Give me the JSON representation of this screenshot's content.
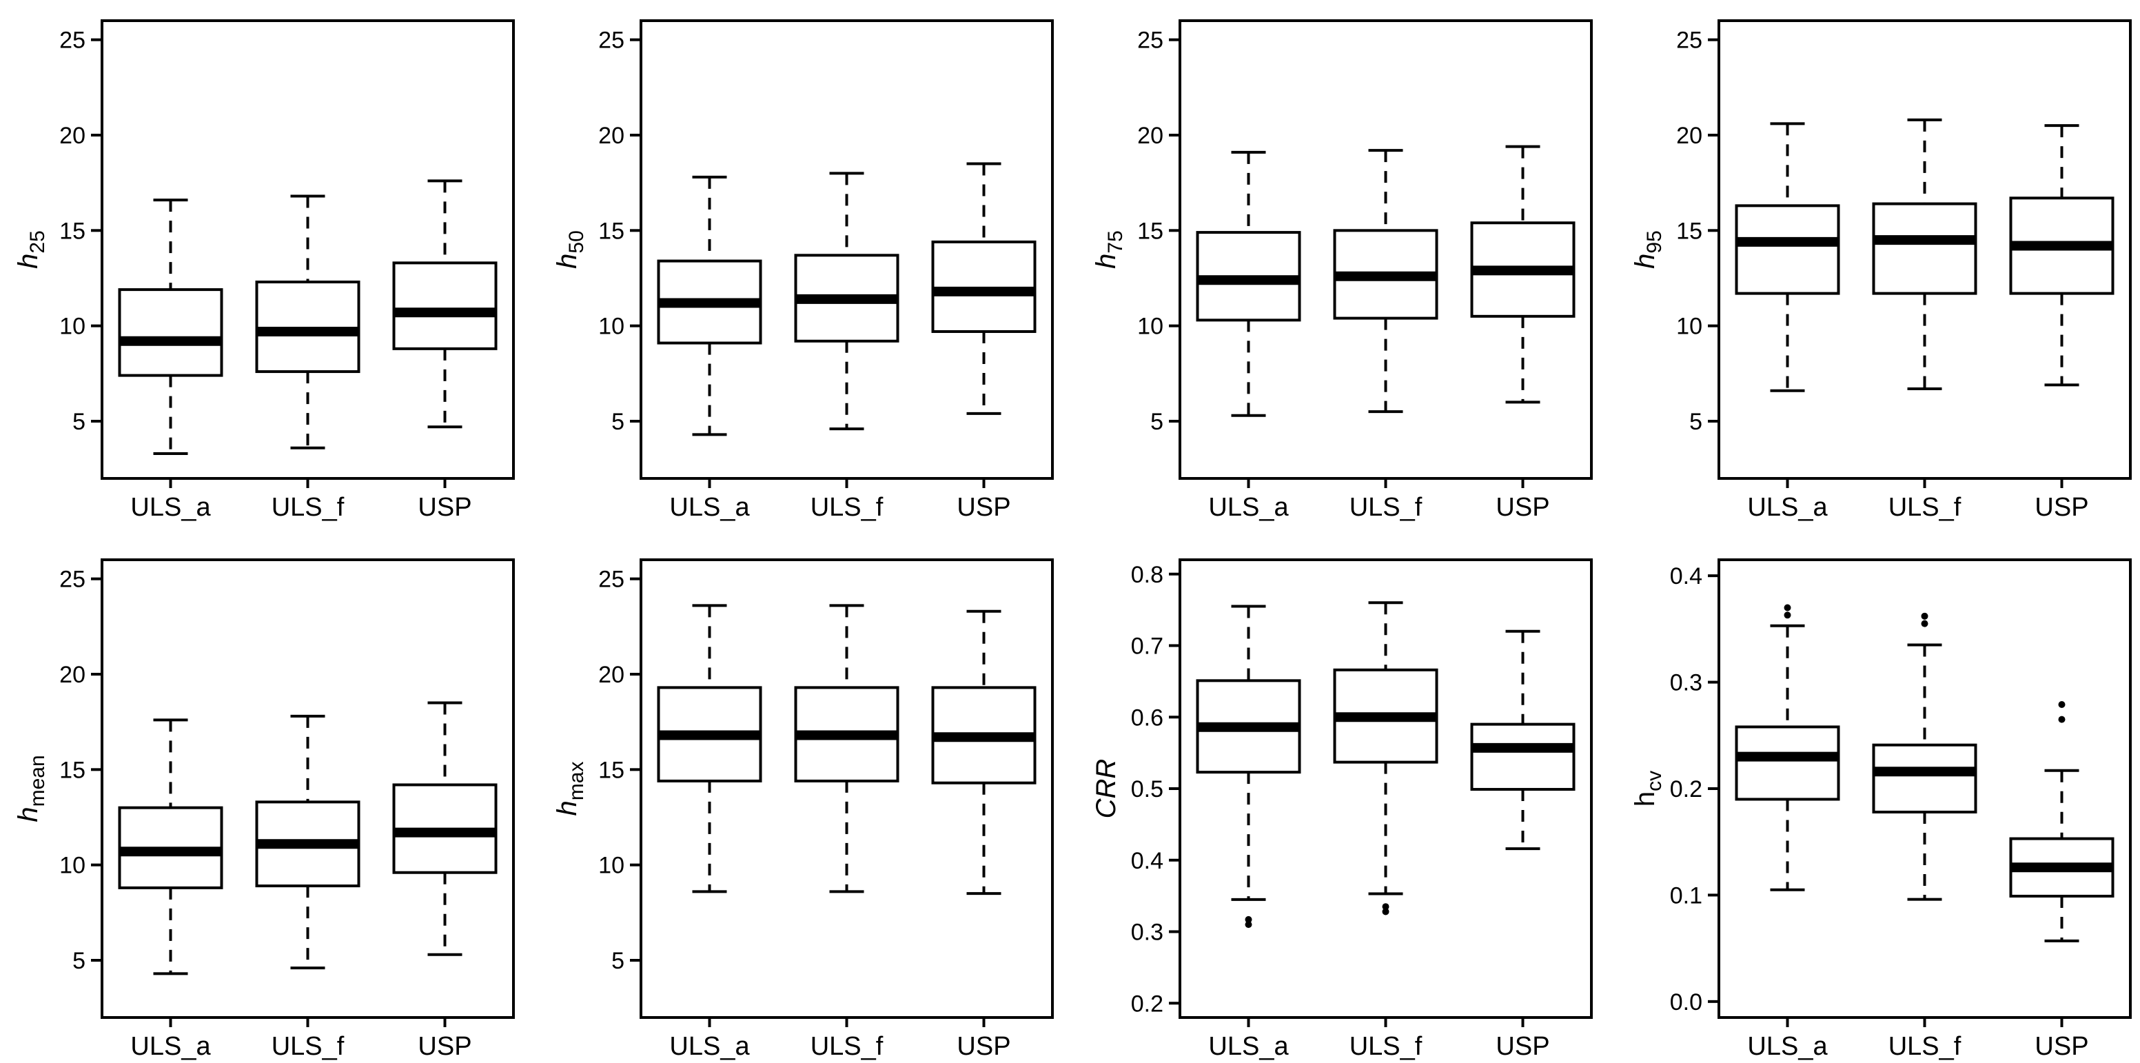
{
  "chart_data": [
    {
      "type": "box",
      "ylabel": {
        "base": "h",
        "sub": "25",
        "italic_base": true
      },
      "categories": [
        "ULS_a",
        "ULS_f",
        "USP"
      ],
      "ylim": [
        2,
        26
      ],
      "yticks": [
        5,
        10,
        15,
        20,
        25
      ],
      "yticklabels": [
        "5",
        "10",
        "15",
        "20",
        "25"
      ],
      "boxes": [
        {
          "category": "ULS_a",
          "whisker_low": 3.3,
          "q1": 7.4,
          "median": 9.2,
          "q3": 11.9,
          "whisker_high": 16.6,
          "outliers": []
        },
        {
          "category": "ULS_f",
          "whisker_low": 3.6,
          "q1": 7.6,
          "median": 9.7,
          "q3": 12.3,
          "whisker_high": 16.8,
          "outliers": []
        },
        {
          "category": "USP",
          "whisker_low": 4.7,
          "q1": 8.8,
          "median": 10.7,
          "q3": 13.3,
          "whisker_high": 17.6,
          "outliers": []
        }
      ]
    },
    {
      "type": "box",
      "ylabel": {
        "base": "h",
        "sub": "50",
        "italic_base": true
      },
      "categories": [
        "ULS_a",
        "ULS_f",
        "USP"
      ],
      "ylim": [
        2,
        26
      ],
      "yticks": [
        5,
        10,
        15,
        20,
        25
      ],
      "yticklabels": [
        "5",
        "10",
        "15",
        "20",
        "25"
      ],
      "boxes": [
        {
          "category": "ULS_a",
          "whisker_low": 4.3,
          "q1": 9.1,
          "median": 11.2,
          "q3": 13.4,
          "whisker_high": 17.8,
          "outliers": []
        },
        {
          "category": "ULS_f",
          "whisker_low": 4.6,
          "q1": 9.2,
          "median": 11.4,
          "q3": 13.7,
          "whisker_high": 18.0,
          "outliers": []
        },
        {
          "category": "USP",
          "whisker_low": 5.4,
          "q1": 9.7,
          "median": 11.8,
          "q3": 14.4,
          "whisker_high": 18.5,
          "outliers": []
        }
      ]
    },
    {
      "type": "box",
      "ylabel": {
        "base": "h",
        "sub": "75",
        "italic_base": true
      },
      "categories": [
        "ULS_a",
        "ULS_f",
        "USP"
      ],
      "ylim": [
        2,
        26
      ],
      "yticks": [
        5,
        10,
        15,
        20,
        25
      ],
      "yticklabels": [
        "5",
        "10",
        "15",
        "20",
        "25"
      ],
      "boxes": [
        {
          "category": "ULS_a",
          "whisker_low": 5.3,
          "q1": 10.3,
          "median": 12.4,
          "q3": 14.9,
          "whisker_high": 19.1,
          "outliers": []
        },
        {
          "category": "ULS_f",
          "whisker_low": 5.5,
          "q1": 10.4,
          "median": 12.6,
          "q3": 15.0,
          "whisker_high": 19.2,
          "outliers": []
        },
        {
          "category": "USP",
          "whisker_low": 6.0,
          "q1": 10.5,
          "median": 12.9,
          "q3": 15.4,
          "whisker_high": 19.4,
          "outliers": []
        }
      ]
    },
    {
      "type": "box",
      "ylabel": {
        "base": "h",
        "sub": "95",
        "italic_base": true
      },
      "categories": [
        "ULS_a",
        "ULS_f",
        "USP"
      ],
      "ylim": [
        2,
        26
      ],
      "yticks": [
        5,
        10,
        15,
        20,
        25
      ],
      "yticklabels": [
        "5",
        "10",
        "15",
        "20",
        "25"
      ],
      "boxes": [
        {
          "category": "ULS_a",
          "whisker_low": 6.6,
          "q1": 11.7,
          "median": 14.4,
          "q3": 16.3,
          "whisker_high": 20.6,
          "outliers": []
        },
        {
          "category": "ULS_f",
          "whisker_low": 6.7,
          "q1": 11.7,
          "median": 14.5,
          "q3": 16.4,
          "whisker_high": 20.8,
          "outliers": []
        },
        {
          "category": "USP",
          "whisker_low": 6.9,
          "q1": 11.7,
          "median": 14.2,
          "q3": 16.7,
          "whisker_high": 20.5,
          "outliers": []
        }
      ]
    },
    {
      "type": "box",
      "ylabel": {
        "base": "h",
        "sub": "mean",
        "italic_base": true
      },
      "categories": [
        "ULS_a",
        "ULS_f",
        "USP"
      ],
      "ylim": [
        2,
        26
      ],
      "yticks": [
        5,
        10,
        15,
        20,
        25
      ],
      "yticklabels": [
        "5",
        "10",
        "15",
        "20",
        "25"
      ],
      "boxes": [
        {
          "category": "ULS_a",
          "whisker_low": 4.3,
          "q1": 8.8,
          "median": 10.7,
          "q3": 13.0,
          "whisker_high": 17.6,
          "outliers": []
        },
        {
          "category": "ULS_f",
          "whisker_low": 4.6,
          "q1": 8.9,
          "median": 11.1,
          "q3": 13.3,
          "whisker_high": 17.8,
          "outliers": []
        },
        {
          "category": "USP",
          "whisker_low": 5.3,
          "q1": 9.6,
          "median": 11.7,
          "q3": 14.2,
          "whisker_high": 18.5,
          "outliers": []
        }
      ]
    },
    {
      "type": "box",
      "ylabel": {
        "base": "h",
        "sub": "max",
        "italic_base": true
      },
      "categories": [
        "ULS_a",
        "ULS_f",
        "USP"
      ],
      "ylim": [
        2,
        26
      ],
      "yticks": [
        5,
        10,
        15,
        20,
        25
      ],
      "yticklabels": [
        "5",
        "10",
        "15",
        "20",
        "25"
      ],
      "boxes": [
        {
          "category": "ULS_a",
          "whisker_low": 8.6,
          "q1": 14.4,
          "median": 16.8,
          "q3": 19.3,
          "whisker_high": 23.6,
          "outliers": []
        },
        {
          "category": "ULS_f",
          "whisker_low": 8.6,
          "q1": 14.4,
          "median": 16.8,
          "q3": 19.3,
          "whisker_high": 23.6,
          "outliers": []
        },
        {
          "category": "USP",
          "whisker_low": 8.5,
          "q1": 14.3,
          "median": 16.7,
          "q3": 19.3,
          "whisker_high": 23.3,
          "outliers": []
        }
      ]
    },
    {
      "type": "box",
      "ylabel": {
        "base": "CRR",
        "sub": "",
        "italic_base": true
      },
      "categories": [
        "ULS_a",
        "ULS_f",
        "USP"
      ],
      "ylim": [
        0.18,
        0.82
      ],
      "yticks": [
        0.2,
        0.3,
        0.4,
        0.5,
        0.6,
        0.7,
        0.8
      ],
      "yticklabels": [
        "0.2",
        "0.3",
        "0.4",
        "0.5",
        "0.6",
        "0.7",
        "0.8"
      ],
      "boxes": [
        {
          "category": "ULS_a",
          "whisker_low": 0.345,
          "q1": 0.523,
          "median": 0.586,
          "q3": 0.651,
          "whisker_high": 0.755,
          "outliers": [
            0.31,
            0.317
          ]
        },
        {
          "category": "ULS_f",
          "whisker_low": 0.353,
          "q1": 0.537,
          "median": 0.6,
          "q3": 0.666,
          "whisker_high": 0.76,
          "outliers": [
            0.328,
            0.335
          ]
        },
        {
          "category": "USP",
          "whisker_low": 0.416,
          "q1": 0.499,
          "median": 0.557,
          "q3": 0.59,
          "whisker_high": 0.72,
          "outliers": []
        }
      ]
    },
    {
      "type": "box",
      "ylabel": {
        "base": "h",
        "sub": "cv",
        "italic_base": false
      },
      "categories": [
        "ULS_a",
        "ULS_f",
        "USP"
      ],
      "ylim": [
        -0.015,
        0.415
      ],
      "yticks": [
        0.0,
        0.1,
        0.2,
        0.3,
        0.4
      ],
      "yticklabels": [
        "0.0",
        "0.1",
        "0.2",
        "0.3",
        "0.4"
      ],
      "boxes": [
        {
          "category": "ULS_a",
          "whisker_low": 0.105,
          "q1": 0.19,
          "median": 0.23,
          "q3": 0.258,
          "whisker_high": 0.353,
          "outliers": [
            0.363,
            0.37
          ]
        },
        {
          "category": "ULS_f",
          "whisker_low": 0.096,
          "q1": 0.178,
          "median": 0.216,
          "q3": 0.241,
          "whisker_high": 0.335,
          "outliers": [
            0.355,
            0.362
          ]
        },
        {
          "category": "USP",
          "whisker_low": 0.057,
          "q1": 0.099,
          "median": 0.126,
          "q3": 0.153,
          "whisker_high": 0.217,
          "outliers": [
            0.265,
            0.279
          ]
        }
      ]
    }
  ]
}
